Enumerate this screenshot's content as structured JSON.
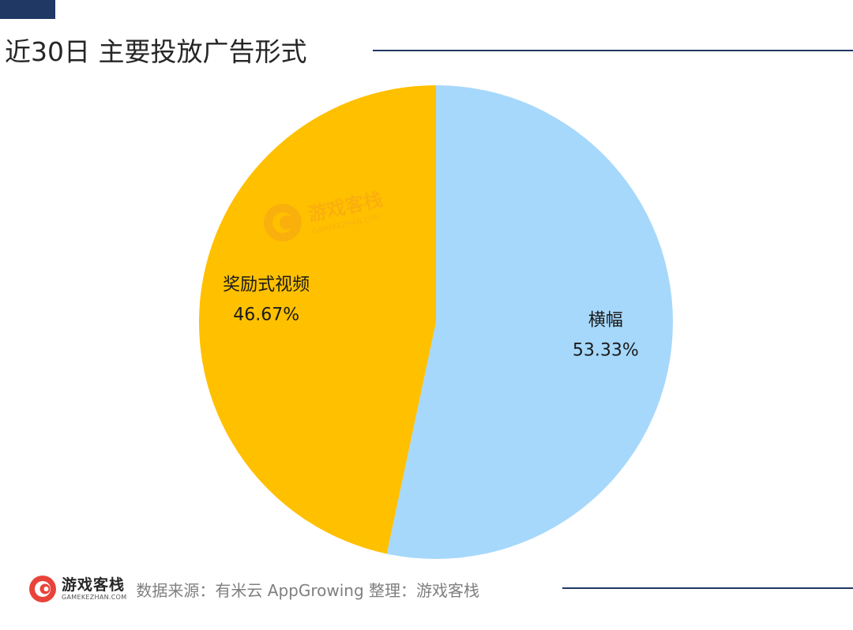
{
  "title": "近30日 主要投放广告形式",
  "chart_data": {
    "type": "pie",
    "title": "近30日 主要投放广告形式",
    "slices": [
      {
        "label": "横幅",
        "value": 53.33,
        "display": "53.33%",
        "color": "#a6d8fb"
      },
      {
        "label": "奖励式视频",
        "value": 46.67,
        "display": "46.67%",
        "color": "#ffc000"
      }
    ]
  },
  "watermark": {
    "cn": "游戏客栈",
    "en": "GAMEKEZHAN.COM"
  },
  "footer": {
    "logo_cn": "游戏客栈",
    "logo_en": "GAMEKEZHAN.COM",
    "source": "数据来源：有米云 AppGrowing  整理：游戏客栈"
  },
  "colors": {
    "accent": "#1f3864",
    "logo": "#e8433a"
  }
}
